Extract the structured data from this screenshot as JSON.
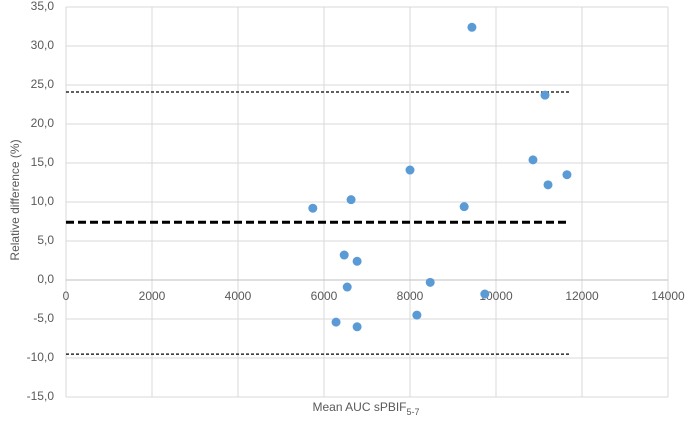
{
  "chart_data": {
    "type": "scatter",
    "xlabel": {
      "text": "Mean AUC sPBIF",
      "subscript": "5-7"
    },
    "ylabel": "Relative difference (%)",
    "series": [
      {
        "color": "#5b9bd5",
        "x": [
          9440,
          11140,
          10860,
          8000,
          11650,
          11210,
          5740,
          6630,
          9260,
          6470,
          6770,
          8470,
          6540,
          9740,
          6280,
          6770,
          8160
        ],
        "values": [
          32.4,
          23.7,
          15.4,
          14.1,
          13.5,
          12.2,
          9.2,
          10.3,
          9.4,
          3.2,
          2.4,
          -0.3,
          -0.9,
          -1.8,
          -5.4,
          -6.0,
          -4.5
        ]
      }
    ],
    "reference_lines": [
      {
        "value": 24.1,
        "style": "thin-dashed",
        "x": [
          0,
          11700
        ]
      },
      {
        "value": 7.4,
        "style": "thick-dashed",
        "x": [
          0,
          11700
        ]
      },
      {
        "value": -9.5,
        "style": "thin-dashed",
        "x": [
          0,
          11700
        ]
      }
    ],
    "xlim": [
      0,
      14000
    ],
    "xticks": [
      0,
      2000,
      4000,
      6000,
      8000,
      10000,
      12000,
      14000
    ],
    "ylim": [
      -15,
      35
    ],
    "yticks": [
      {
        "value": -15,
        "label": "-15,0"
      },
      {
        "value": -10,
        "label": "-10,0"
      },
      {
        "value": -5,
        "label": "-5,0"
      },
      {
        "value": 0,
        "label": "0,0"
      },
      {
        "value": 5,
        "label": "5,0"
      },
      {
        "value": 10,
        "label": "10,0"
      },
      {
        "value": 15,
        "label": "15,0"
      },
      {
        "value": 20,
        "label": "20,0"
      },
      {
        "value": 25,
        "label": "25,0"
      },
      {
        "value": 30,
        "label": "30,0"
      },
      {
        "value": 35,
        "label": "35,0"
      }
    ],
    "grid": true
  }
}
